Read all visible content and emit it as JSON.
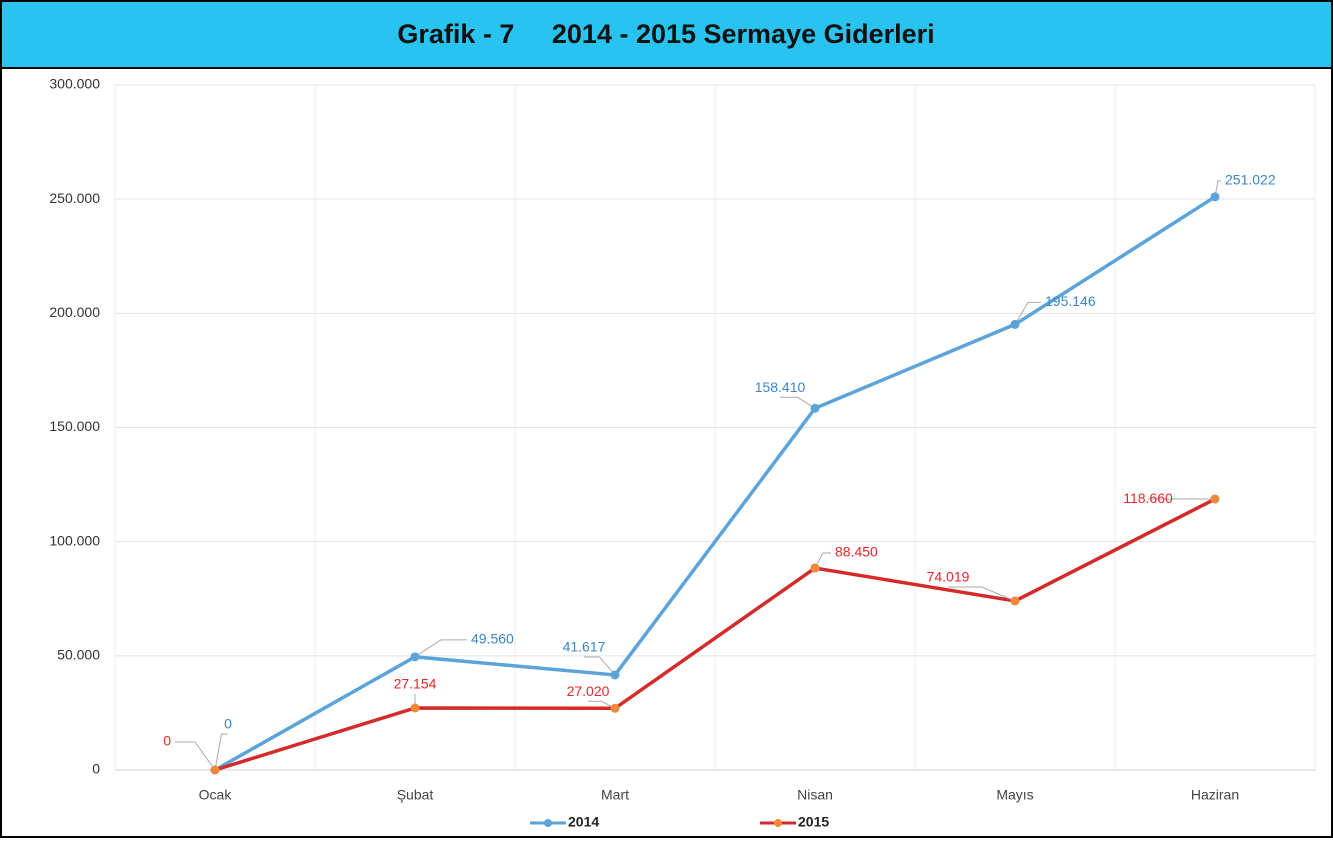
{
  "chart_data": {
    "type": "line",
    "title": "Grafik - 7     2014 - 2015 Sermaye Giderleri",
    "categories": [
      "Ocak",
      "Şubat",
      "Mart",
      "Nisan",
      "Mayıs",
      "Haziran"
    ],
    "series": [
      {
        "name": "2014",
        "color": "#5ba3d9",
        "marker_color": "#5ba3d9",
        "label_color": "#3a85c8",
        "values": [
          0,
          49560,
          41617,
          158410,
          195146,
          251022
        ],
        "value_labels": [
          "0",
          "49.560",
          "41.617",
          "158.410",
          "195.146",
          "251.022"
        ]
      },
      {
        "name": "2015",
        "color": "#d42a2a",
        "marker_color": "#f0883a",
        "label_color": "#e8272a",
        "values": [
          0,
          27154,
          27020,
          88450,
          74019,
          118660
        ],
        "value_labels": [
          "0",
          "27.154",
          "27.020",
          "88.450",
          "74.019",
          "118.660"
        ]
      }
    ],
    "ylim": [
      0,
      300000
    ],
    "yticks": [
      0,
      {
        "value": 50000,
        "label": "50.000"
      },
      {
        "value": 100000,
        "label": "100.000"
      },
      {
        "value": 150000,
        "label": "150.000"
      },
      {
        "value": 200000,
        "label": "200.000"
      },
      {
        "value": 250000,
        "label": "250.000"
      },
      {
        "value": 300000,
        "label": "300.000"
      }
    ],
    "grid": true,
    "legend": "bottom"
  }
}
